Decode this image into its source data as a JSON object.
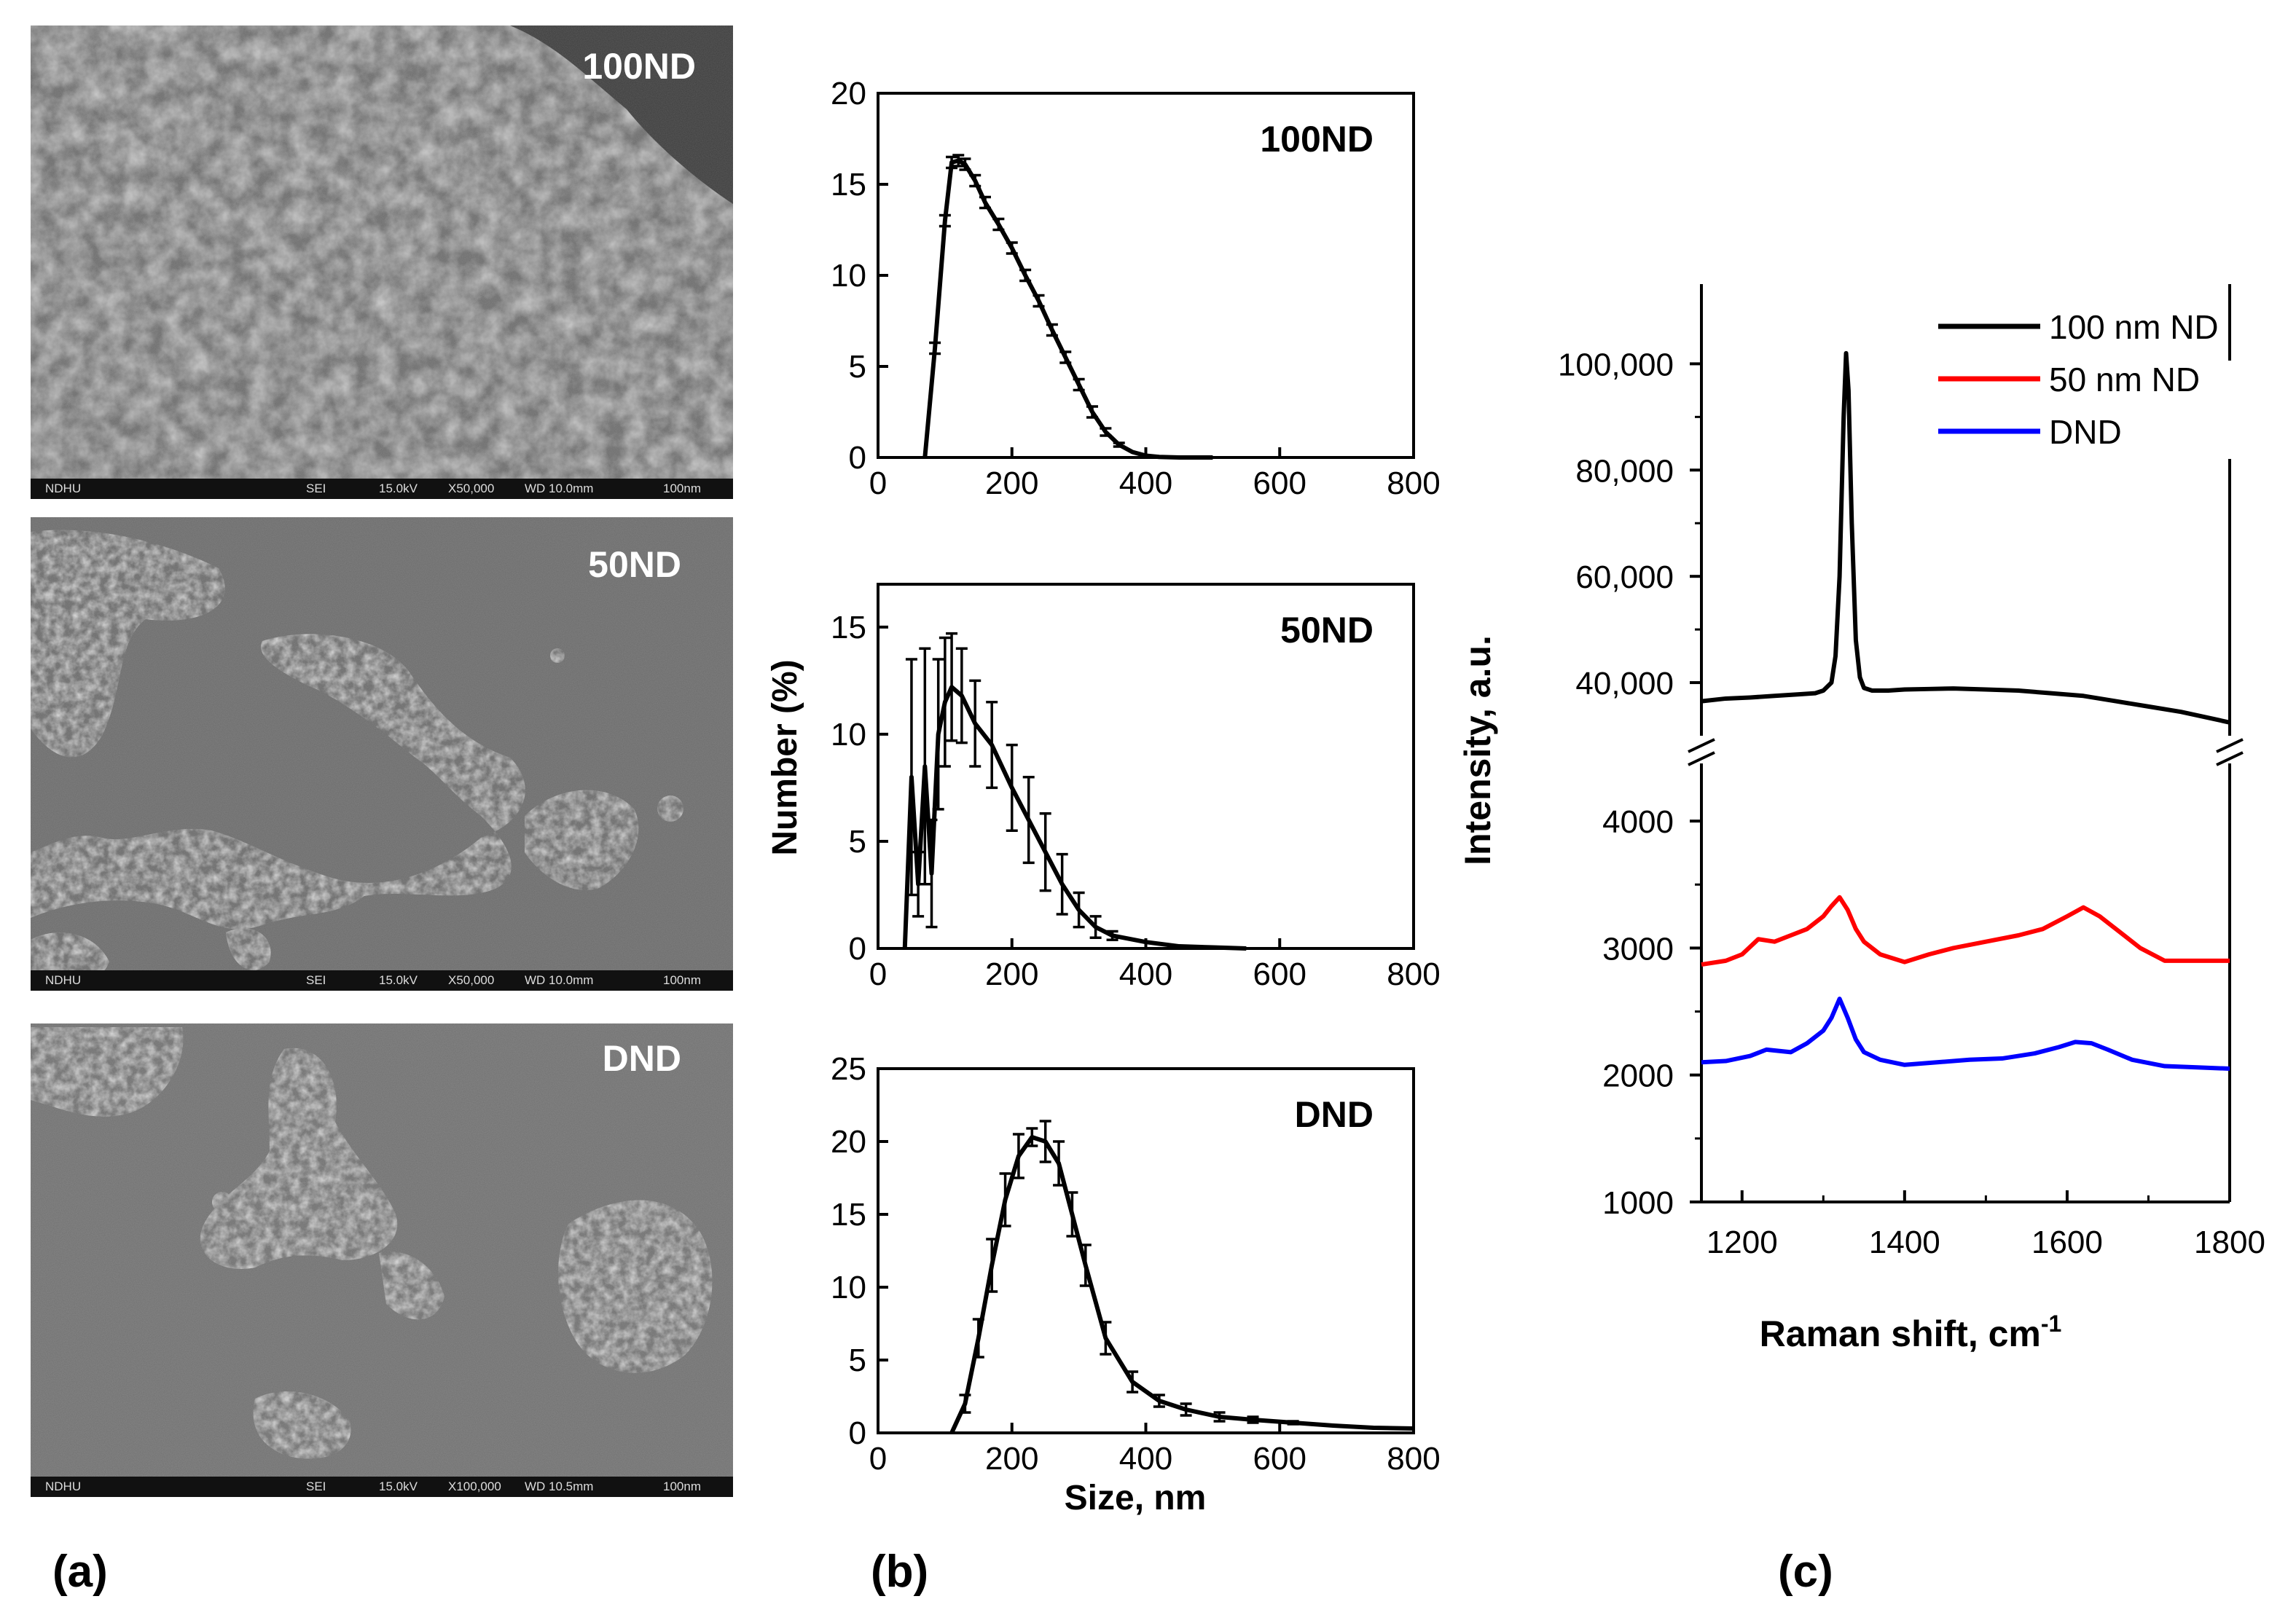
{
  "panel_labels": {
    "a": "(a)",
    "b": "(b)",
    "c": "(c)"
  },
  "sem_images": [
    {
      "label": "100ND",
      "footer": [
        "NDHU",
        "SEI",
        "15.0kV",
        "X50,000",
        "WD 10.0mm",
        "100nm"
      ]
    },
    {
      "label": "50ND",
      "footer": [
        "NDHU",
        "SEI",
        "15.0kV",
        "X50,000",
        "WD 10.0mm",
        "100nm"
      ]
    },
    {
      "label": "DND",
      "footer": [
        "NDHU",
        "SEI",
        "15.0kV",
        "X100,000",
        "WD 10.5mm",
        "100nm"
      ]
    }
  ],
  "chart_data": [
    {
      "type": "line",
      "panel": "b",
      "label": "100ND",
      "xlim": [
        0,
        800
      ],
      "ylim": [
        0,
        20
      ],
      "xticks": [
        0,
        200,
        400,
        600,
        800
      ],
      "yticks": [
        0,
        5,
        10,
        15,
        20
      ],
      "x": [
        70,
        85,
        100,
        110,
        120,
        130,
        145,
        160,
        180,
        200,
        220,
        240,
        260,
        280,
        300,
        320,
        340,
        360,
        380,
        400,
        420,
        450,
        500
      ],
      "y": [
        0,
        6,
        13,
        16.2,
        16.3,
        16.1,
        15.2,
        14.0,
        12.8,
        11.5,
        10.0,
        8.6,
        7.0,
        5.5,
        4.0,
        2.5,
        1.4,
        0.7,
        0.3,
        0.1,
        0.03,
        0,
        0
      ],
      "err": [
        0,
        0.3,
        0.3,
        0.3,
        0.3,
        0.3,
        0.3,
        0.3,
        0.3,
        0.3,
        0.3,
        0.3,
        0.3,
        0.3,
        0.3,
        0.3,
        0.2,
        0.1,
        0,
        0,
        0,
        0,
        0
      ],
      "xlabel": "",
      "ylabel": ""
    },
    {
      "type": "line",
      "panel": "b",
      "label": "50ND",
      "xlim": [
        0,
        800
      ],
      "ylim": [
        0,
        17
      ],
      "xticks": [
        0,
        200,
        400,
        600,
        800
      ],
      "yticks": [
        0,
        5,
        10,
        15
      ],
      "x": [
        40,
        50,
        60,
        70,
        80,
        90,
        100,
        110,
        125,
        145,
        170,
        200,
        225,
        250,
        275,
        300,
        325,
        350,
        400,
        450,
        500,
        550
      ],
      "y": [
        0,
        8,
        3,
        8.5,
        3.5,
        10,
        11.5,
        12.2,
        11.8,
        10.5,
        9.5,
        7.5,
        6.0,
        4.5,
        3.0,
        1.8,
        1.0,
        0.6,
        0.3,
        0.1,
        0.05,
        0
      ],
      "err": [
        0,
        5.5,
        1.5,
        5.5,
        2.5,
        3.5,
        3.0,
        2.5,
        2.2,
        2.0,
        2.0,
        2.0,
        2.0,
        1.8,
        1.4,
        0.8,
        0.5,
        0.2,
        0,
        0,
        0,
        0
      ],
      "xlabel": "",
      "ylabel": "Number (%)"
    },
    {
      "type": "line",
      "panel": "b",
      "label": "DND",
      "xlim": [
        0,
        800
      ],
      "ylim": [
        0,
        25
      ],
      "xticks": [
        0,
        200,
        400,
        600,
        800
      ],
      "yticks": [
        0,
        5,
        10,
        15,
        20,
        25
      ],
      "x": [
        110,
        130,
        150,
        170,
        190,
        210,
        230,
        250,
        270,
        290,
        310,
        340,
        380,
        420,
        460,
        510,
        560,
        620,
        680,
        740,
        800
      ],
      "y": [
        0,
        2,
        6.5,
        11.5,
        16,
        19,
        20.3,
        20.0,
        18.5,
        15,
        11.5,
        6.5,
        3.5,
        2.2,
        1.6,
        1.1,
        0.9,
        0.7,
        0.5,
        0.35,
        0.3
      ],
      "err": [
        0,
        0.6,
        1.3,
        1.8,
        1.8,
        1.5,
        0.6,
        1.4,
        1.5,
        1.5,
        1.4,
        1.1,
        0.7,
        0.4,
        0.4,
        0.3,
        0.2,
        0.1,
        0,
        0,
        0
      ],
      "xlabel": "Size, nm",
      "ylabel": ""
    },
    {
      "type": "line",
      "panel": "c",
      "xlim": [
        1150,
        1800
      ],
      "xticks": [
        1200,
        1400,
        1600,
        1800
      ],
      "upper_ylim": [
        30000,
        115000
      ],
      "upper_yticks": [
        40000,
        60000,
        80000,
        100000
      ],
      "upper_yticklabels": [
        "40,000",
        "60,000",
        "80,000",
        "100,000"
      ],
      "lower_ylim": [
        1000,
        4500
      ],
      "lower_yticks": [
        1000,
        2000,
        3000,
        4000
      ],
      "lower_yticklabels": [
        "1000",
        "2000",
        "3000",
        "4000"
      ],
      "xlabel": "Raman shift, cm",
      "xlabel_sup": "-1",
      "ylabel": "Intensity, a.u.",
      "legend_position": "top-right",
      "series": [
        {
          "name": "100 nm ND",
          "color": "#000000",
          "axis": "upper",
          "x": [
            1150,
            1180,
            1210,
            1240,
            1270,
            1290,
            1300,
            1310,
            1315,
            1320,
            1325,
            1328,
            1331,
            1335,
            1340,
            1345,
            1350,
            1360,
            1380,
            1400,
            1430,
            1460,
            1500,
            1540,
            1580,
            1620,
            1660,
            1700,
            1740,
            1770,
            1800
          ],
          "y": [
            36500,
            37000,
            37200,
            37500,
            37800,
            38000,
            38500,
            40000,
            45000,
            60000,
            90000,
            102000,
            95000,
            70000,
            48000,
            41000,
            39000,
            38500,
            38500,
            38700,
            38800,
            38900,
            38700,
            38500,
            38000,
            37500,
            36500,
            35500,
            34500,
            33500,
            32500
          ]
        },
        {
          "name": "50 nm ND",
          "color": "#ff0000",
          "axis": "lower",
          "x": [
            1150,
            1180,
            1200,
            1220,
            1240,
            1260,
            1280,
            1300,
            1310,
            1320,
            1330,
            1340,
            1350,
            1370,
            1400,
            1430,
            1460,
            1500,
            1540,
            1570,
            1600,
            1620,
            1640,
            1660,
            1690,
            1720,
            1760,
            1800
          ],
          "y": [
            2870,
            2900,
            2950,
            3070,
            3050,
            3100,
            3150,
            3250,
            3330,
            3400,
            3300,
            3150,
            3050,
            2950,
            2890,
            2950,
            3000,
            3050,
            3100,
            3150,
            3250,
            3320,
            3250,
            3150,
            3000,
            2900,
            2900,
            2900
          ]
        },
        {
          "name": "DND",
          "color": "#0000ff",
          "axis": "lower",
          "x": [
            1150,
            1180,
            1210,
            1230,
            1260,
            1280,
            1300,
            1310,
            1320,
            1330,
            1340,
            1350,
            1370,
            1400,
            1440,
            1480,
            1520,
            1560,
            1590,
            1610,
            1630,
            1650,
            1680,
            1720,
            1760,
            1800
          ],
          "y": [
            2100,
            2110,
            2150,
            2200,
            2180,
            2250,
            2350,
            2450,
            2600,
            2450,
            2280,
            2180,
            2120,
            2080,
            2100,
            2120,
            2130,
            2170,
            2220,
            2260,
            2250,
            2200,
            2120,
            2070,
            2060,
            2050
          ]
        }
      ]
    }
  ]
}
